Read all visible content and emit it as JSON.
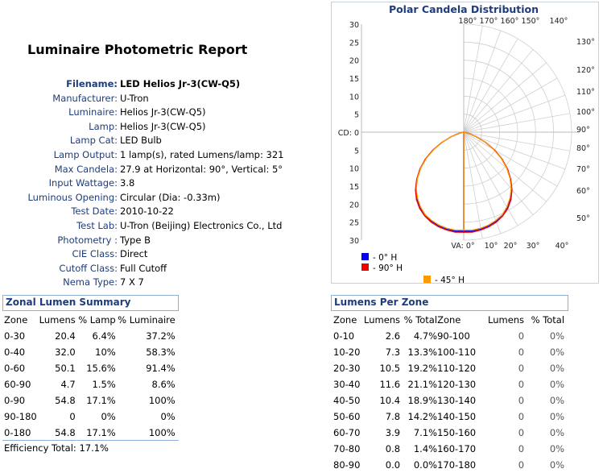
{
  "report": {
    "title": "Luminaire Photometric Report",
    "info": [
      {
        "label": "Filename:",
        "value": "LED Helios Jr-3(CW-Q5)",
        "bold": true
      },
      {
        "label": "Manufacturer:",
        "value": "U-Tron"
      },
      {
        "label": "Luminaire:",
        "value": "Helios Jr-3(CW-Q5)"
      },
      {
        "label": "Lamp:",
        "value": "Helios Jr-3(CW-Q5)"
      },
      {
        "label": "Lamp Cat:",
        "value": "LED Bulb"
      },
      {
        "label": "Lamp Output:",
        "value": "1 lamp(s), rated Lumens/lamp: 321"
      },
      {
        "label": "Max Candela:",
        "value": "27.9 at Horizontal: 90°, Vertical: 5°"
      },
      {
        "label": "Input Wattage:",
        "value": "3.8"
      },
      {
        "label": "Luminous Opening:",
        "value": "Circular (Dia: -0.33m)"
      },
      {
        "label": "Test Date:",
        "value": "2010-10-22"
      },
      {
        "label": "Test Lab:",
        "value": "U-Tron (Beijing) Electronics Co., Ltd"
      },
      {
        "label": "Photometry :",
        "value": "Type B"
      },
      {
        "label": "CIE Class:",
        "value": "Direct"
      },
      {
        "label": "Cutoff Class:",
        "value": "Full Cutoff"
      },
      {
        "label": "Nema Type:",
        "value": "7 X 7"
      }
    ]
  },
  "zonal_summary": {
    "title": "Zonal Lumen Summary",
    "headers": [
      "Zone",
      "Lumens",
      "% Lamp",
      "% Luminaire"
    ],
    "rows": [
      [
        "0-30",
        "20.4",
        "6.4%",
        "37.2%"
      ],
      [
        "0-40",
        "32.0",
        "10%",
        "58.3%"
      ],
      [
        "0-60",
        "50.1",
        "15.6%",
        "91.4%"
      ],
      [
        "60-90",
        "4.7",
        "1.5%",
        "8.6%"
      ],
      [
        "0-90",
        "54.8",
        "17.1%",
        "100%"
      ],
      [
        "90-180",
        "0",
        "0%",
        "0%"
      ],
      [
        "0-180",
        "54.8",
        "17.1%",
        "100%"
      ]
    ],
    "efficiency": "Efficiency Total: 17.1%"
  },
  "lumens_per_zone": {
    "title": "Lumens Per Zone",
    "headers": [
      "Zone",
      "Lumens",
      "% Total",
      "Zone",
      "Lumens",
      "% Total"
    ],
    "rows": [
      [
        "0-10",
        "2.6",
        "4.7%",
        "90-100",
        "0",
        "0%"
      ],
      [
        "10-20",
        "7.3",
        "13.3%",
        "100-110",
        "0",
        "0%"
      ],
      [
        "20-30",
        "10.5",
        "19.2%",
        "110-120",
        "0",
        "0%"
      ],
      [
        "30-40",
        "11.6",
        "21.1%",
        "120-130",
        "0",
        "0%"
      ],
      [
        "40-50",
        "10.4",
        "18.9%",
        "130-140",
        "0",
        "0%"
      ],
      [
        "50-60",
        "7.8",
        "14.2%",
        "140-150",
        "0",
        "0%"
      ],
      [
        "60-70",
        "3.9",
        "7.1%",
        "150-160",
        "0",
        "0%"
      ],
      [
        "70-80",
        "0.8",
        "1.4%",
        "160-170",
        "0",
        "0%"
      ],
      [
        "80-90",
        "0.0",
        "0.0%",
        "170-180",
        "0",
        "0%"
      ]
    ]
  },
  "chart_data": {
    "type": "polar",
    "title": "Polar Candela Distribution",
    "radial_ticks": [
      "30",
      "25",
      "20",
      "15",
      "10",
      "5",
      "CD: 0",
      "5",
      "10",
      "15",
      "20",
      "25",
      "30"
    ],
    "radial_max": 30,
    "top_angle_labels": [
      "180°",
      "170°",
      "160°",
      "150°",
      "140°"
    ],
    "right_angle_labels": [
      "130°",
      "120°",
      "110°",
      "100°",
      "90°",
      "80°",
      "70°",
      "60°",
      "50°"
    ],
    "bottom_angle_labels": [
      "VA: 0°",
      "10°",
      "20°",
      "30°",
      "40°"
    ],
    "series": [
      {
        "name": "- 0° H",
        "color": "#0000ee",
        "angles": [
          0,
          5,
          10,
          15,
          20,
          25,
          30,
          35,
          40,
          45,
          50,
          55,
          60,
          65,
          70,
          75,
          80,
          85,
          90
        ],
        "candela": [
          27.5,
          27.6,
          27.3,
          26.9,
          26.3,
          25.4,
          24.2,
          22.6,
          20.7,
          18.4,
          15.8,
          12.9,
          9.8,
          6.6,
          3.7,
          1.7,
          0.6,
          0.2,
          0.0
        ]
      },
      {
        "name": "- 90° H",
        "color": "#ee0000",
        "angles": [
          0,
          5,
          10,
          15,
          20,
          25,
          30,
          35,
          40,
          45,
          50,
          55,
          60,
          65,
          70,
          75,
          80,
          85,
          90
        ],
        "candela": [
          27.8,
          27.9,
          27.6,
          27.2,
          26.6,
          25.7,
          24.5,
          22.9,
          20.9,
          18.5,
          15.9,
          13.0,
          9.9,
          6.7,
          3.8,
          1.8,
          0.6,
          0.2,
          0.0
        ]
      },
      {
        "name": "- 45° H",
        "color": "#ff9900",
        "angles": [
          0,
          5,
          10,
          15,
          20,
          25,
          30,
          35,
          40,
          45,
          50,
          55,
          60,
          65,
          70,
          75,
          80,
          85,
          90
        ],
        "candela": [
          27.2,
          27.3,
          27.1,
          26.7,
          26.1,
          25.3,
          24.0,
          22.4,
          20.5,
          18.2,
          15.6,
          12.7,
          9.6,
          6.5,
          3.6,
          1.6,
          0.5,
          0.2,
          0.0
        ]
      }
    ]
  }
}
